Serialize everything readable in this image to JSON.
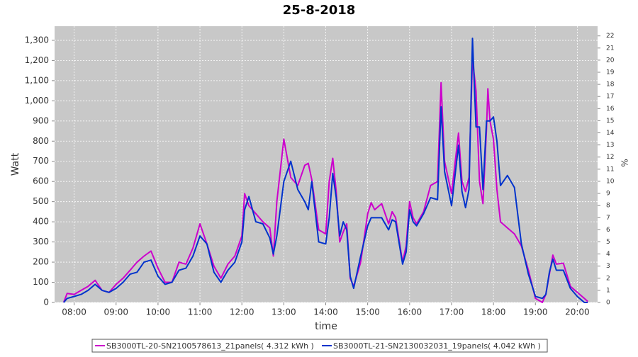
{
  "chart_data": {
    "type": "line",
    "title": "25-8-2018",
    "xlabel": "time",
    "ylabel": "Watt",
    "y2label": "%",
    "x": [
      "07:45",
      "07:50",
      "08:00",
      "08:10",
      "08:20",
      "08:30",
      "08:40",
      "08:50",
      "09:00",
      "09:10",
      "09:20",
      "09:30",
      "09:40",
      "09:50",
      "10:00",
      "10:10",
      "10:20",
      "10:30",
      "10:40",
      "10:50",
      "11:00",
      "11:10",
      "11:20",
      "11:30",
      "11:40",
      "11:50",
      "12:00",
      "12:04",
      "12:10",
      "12:20",
      "12:30",
      "12:40",
      "12:45",
      "12:50",
      "13:00",
      "13:10",
      "13:20",
      "13:30",
      "13:35",
      "13:40",
      "13:50",
      "14:00",
      "14:05",
      "14:10",
      "14:15",
      "14:20",
      "14:25",
      "14:30",
      "14:35",
      "14:40",
      "14:50",
      "15:00",
      "15:05",
      "15:10",
      "15:20",
      "15:30",
      "15:35",
      "15:40",
      "15:50",
      "15:55",
      "16:00",
      "16:05",
      "16:10",
      "16:20",
      "16:30",
      "16:40",
      "16:45",
      "16:50",
      "17:00",
      "17:10",
      "17:15",
      "17:20",
      "17:25",
      "17:30",
      "17:35",
      "17:40",
      "17:45",
      "17:50",
      "17:52",
      "17:55",
      "18:00",
      "18:05",
      "18:10",
      "18:20",
      "18:30",
      "18:40",
      "18:50",
      "19:00",
      "19:10",
      "19:15",
      "19:20",
      "19:25",
      "19:30",
      "19:40",
      "19:50",
      "20:00",
      "20:10",
      "20:15"
    ],
    "series": [
      {
        "name": "SB3000TL-20-SN2100578613_21panels( 4.312 kWh )",
        "color": "#cc00cc",
        "values": [
          0,
          45,
          40,
          60,
          80,
          110,
          60,
          50,
          90,
          120,
          160,
          200,
          230,
          255,
          170,
          100,
          100,
          200,
          190,
          270,
          390,
          290,
          180,
          120,
          190,
          230,
          330,
          540,
          480,
          440,
          400,
          370,
          230,
          500,
          810,
          620,
          580,
          680,
          690,
          610,
          360,
          340,
          600,
          715,
          550,
          300,
          350,
          390,
          120,
          80,
          200,
          440,
          495,
          460,
          490,
          390,
          450,
          420,
          200,
          280,
          500,
          420,
          390,
          450,
          580,
          600,
          1090,
          700,
          540,
          840,
          600,
          550,
          620,
          1210,
          1050,
          600,
          490,
          860,
          1060,
          900,
          810,
          560,
          400,
          370,
          340,
          280,
          160,
          20,
          0,
          40,
          140,
          235,
          190,
          195,
          80,
          50,
          20,
          5
        ]
      },
      {
        "name": "SB3000TL-21-SN2130032031_19panels( 4.042 kWh )",
        "color": "#0033cc",
        "values": [
          0,
          20,
          30,
          40,
          60,
          90,
          60,
          50,
          70,
          100,
          140,
          150,
          200,
          210,
          130,
          90,
          100,
          160,
          170,
          230,
          330,
          290,
          150,
          100,
          160,
          200,
          300,
          460,
          525,
          400,
          390,
          320,
          240,
          330,
          600,
          700,
          560,
          500,
          460,
          600,
          300,
          290,
          420,
          640,
          520,
          330,
          400,
          360,
          130,
          70,
          230,
          380,
          420,
          420,
          420,
          360,
          410,
          400,
          190,
          250,
          460,
          400,
          380,
          440,
          520,
          510,
          970,
          650,
          480,
          780,
          550,
          470,
          560,
          1310,
          870,
          870,
          560,
          900,
          900,
          900,
          920,
          800,
          580,
          630,
          570,
          290,
          140,
          30,
          20,
          40,
          150,
          215,
          160,
          160,
          70,
          30,
          0,
          0
        ]
      }
    ],
    "xlim": [
      "07:32",
      "20:29"
    ],
    "xticks": [
      "08:00",
      "09:00",
      "10:00",
      "11:00",
      "12:00",
      "13:00",
      "14:00",
      "15:00",
      "16:00",
      "17:00",
      "18:00",
      "19:00",
      "20:00"
    ],
    "ylim": [
      0,
      1370
    ],
    "yticks": [
      0,
      100,
      200,
      300,
      400,
      500,
      600,
      700,
      800,
      900,
      {
        "value": 1000,
        "label": "1,000"
      },
      {
        "value": 1100,
        "label": "1,100"
      },
      {
        "value": 1200,
        "label": "1,200"
      },
      {
        "value": 1300,
        "label": "1,300"
      }
    ],
    "y2lim": [
      0,
      22.8
    ],
    "y2ticks": [
      0,
      1,
      2,
      3,
      4,
      5,
      6,
      7,
      8,
      9,
      10,
      11,
      12,
      13,
      14,
      15,
      16,
      17,
      18,
      19,
      20,
      21,
      22
    ],
    "grid": true
  }
}
